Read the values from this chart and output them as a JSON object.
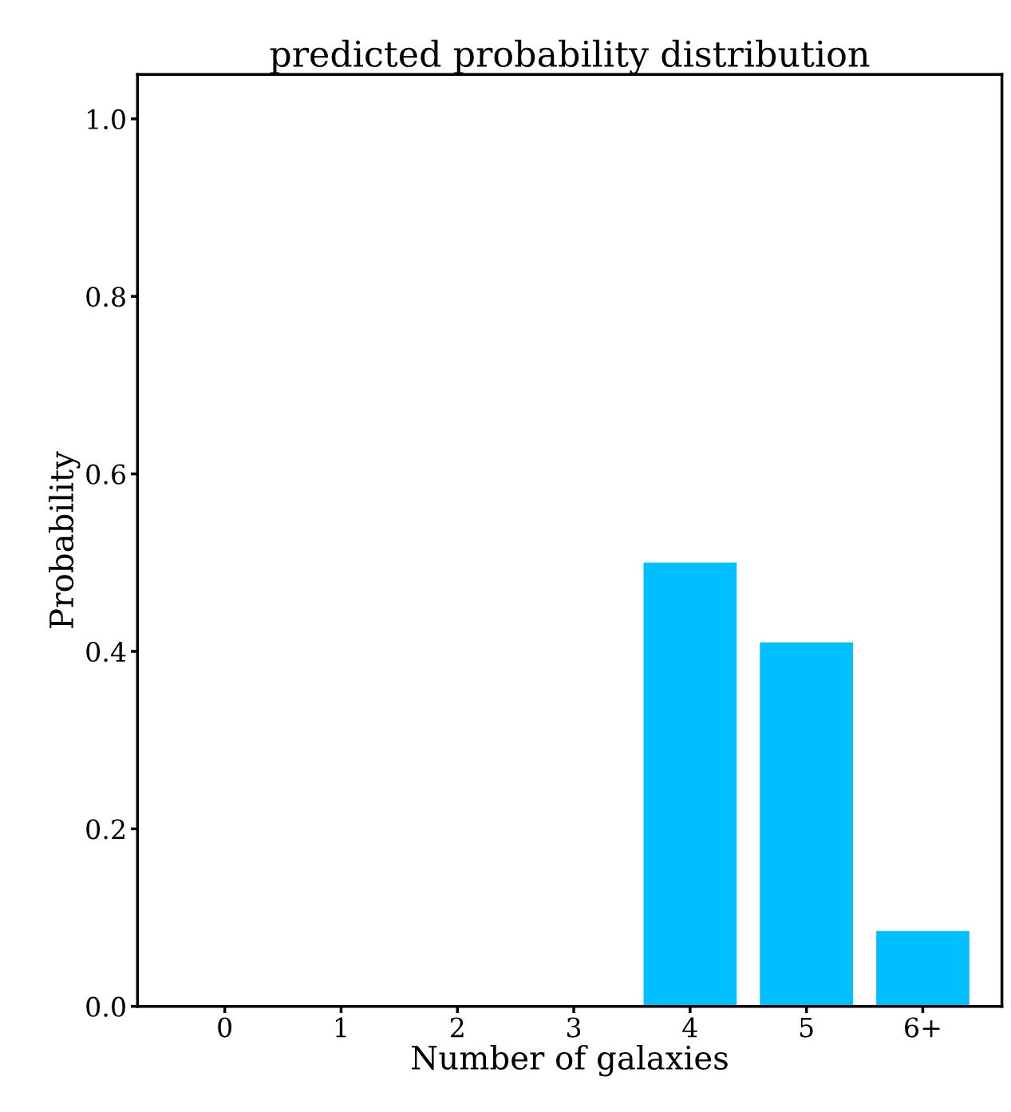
{
  "chart_data": {
    "type": "bar",
    "title": "predicted probability distribution",
    "xlabel": "Number of galaxies",
    "ylabel": "Probability",
    "categories": [
      "0",
      "1",
      "2",
      "3",
      "4",
      "5",
      "6+"
    ],
    "values": [
      0,
      0,
      0,
      0,
      0.5,
      0.41,
      0.085
    ],
    "color": "#00bfff",
    "ylim": [
      0,
      1.05
    ],
    "yticks": [
      {
        "value": 0,
        "label": "0.0"
      },
      0.2,
      0.4,
      0.6,
      0.8,
      {
        "value": 1,
        "label": "1.0"
      }
    ],
    "grid": false
  }
}
